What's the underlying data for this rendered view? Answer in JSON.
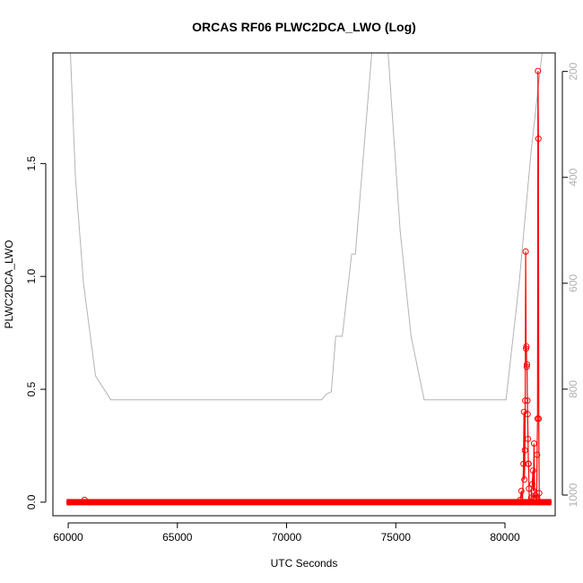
{
  "chart_data": {
    "type": "line",
    "title": "ORCAS RF06 PLWC2DCA_LWO (Log)",
    "xlabel": "UTC Seconds",
    "ylabel": "PLWC2DCA_LWO",
    "xlim": [
      59300,
      82300
    ],
    "ylim": [
      -0.06,
      1.99
    ],
    "x_ticks": [
      60000,
      65000,
      70000,
      75000,
      80000
    ],
    "x_tick_labels": [
      "60000",
      "65000",
      "70000",
      "75000",
      "80000"
    ],
    "y_ticks": [
      0.0,
      0.5,
      1.0,
      1.5
    ],
    "y_tick_labels": [
      "0.0",
      "0.5",
      "1.0",
      "1.5"
    ],
    "y2_lim": [
      1039,
      165
    ],
    "y2_ticks": [
      200,
      400,
      600,
      800,
      1000
    ],
    "y2_tick_labels": [
      "200",
      "400",
      "600",
      "800",
      "1000"
    ],
    "colors": {
      "primary": "#ff0000",
      "secondary": "#b4b4b4"
    },
    "series": [
      {
        "axis": "left",
        "points": [
          [
            60050,
            0.0
          ],
          [
            60750,
            0.01
          ],
          [
            61000,
            0.0
          ],
          [
            80650,
            0.0
          ],
          [
            80700,
            0.01
          ],
          [
            80750,
            0.05
          ],
          [
            80800,
            0.0
          ],
          [
            80850,
            0.17
          ],
          [
            80870,
            0.4
          ],
          [
            80890,
            0.1
          ],
          [
            80910,
            0.23
          ],
          [
            80930,
            0.45
          ],
          [
            80950,
            1.11
          ],
          [
            80965,
            0.68
          ],
          [
            80980,
            0.69
          ],
          [
            80995,
            0.6
          ],
          [
            81010,
            0.61
          ],
          [
            81025,
            0.45
          ],
          [
            81040,
            0.39
          ],
          [
            81055,
            0.28
          ],
          [
            81070,
            0.17
          ],
          [
            81085,
            0.17
          ],
          [
            81100,
            0.06
          ],
          [
            81120,
            0.0
          ],
          [
            81200,
            0.02
          ],
          [
            81250,
            0.08
          ],
          [
            81280,
            0.14
          ],
          [
            81300,
            0.05
          ],
          [
            81330,
            0.26
          ],
          [
            81360,
            0.02
          ],
          [
            81400,
            0.03
          ],
          [
            81420,
            0.02
          ],
          [
            81450,
            0.0
          ],
          [
            81470,
            0.21
          ],
          [
            81490,
            0.37
          ],
          [
            81510,
            1.91
          ],
          [
            81530,
            1.61
          ],
          [
            81550,
            0.37
          ],
          [
            81570,
            0.04
          ],
          [
            81600,
            0.0
          ],
          [
            82000,
            0.0
          ]
        ]
      },
      {
        "axis": "right",
        "points": [
          [
            60100,
            165
          ],
          [
            60330,
            400
          ],
          [
            60700,
            600
          ],
          [
            61250,
            775
          ],
          [
            61950,
            820
          ],
          [
            71600,
            820
          ],
          [
            71800,
            810
          ],
          [
            72050,
            805
          ],
          [
            72250,
            700
          ],
          [
            72550,
            700
          ],
          [
            72980,
            545
          ],
          [
            73150,
            545
          ],
          [
            73900,
            165
          ],
          [
            74650,
            165
          ],
          [
            75200,
            500
          ],
          [
            75700,
            700
          ],
          [
            76300,
            820
          ],
          [
            80050,
            820
          ],
          [
            80650,
            600
          ],
          [
            81200,
            350
          ],
          [
            81700,
            165
          ]
        ]
      }
    ]
  }
}
